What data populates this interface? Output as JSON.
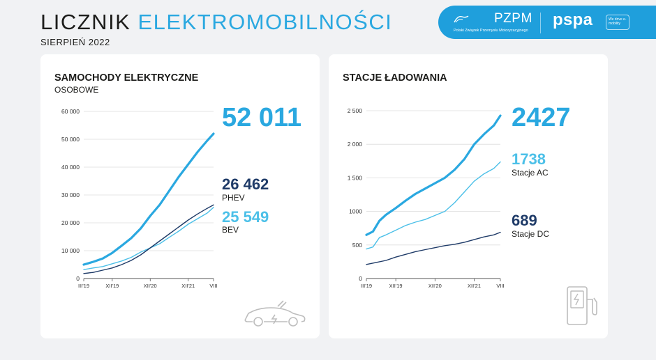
{
  "header": {
    "title_part1": "LICZNIK",
    "title_part2": "ELEKTROMOBILNOŚCI",
    "subtitle": "SIERPIEŃ 2022"
  },
  "logos": {
    "pzpm": "PZPM",
    "pzpm_sub": "Polski Związek Przemysłu Motoryzacyjnego",
    "pspa": "pspa",
    "pspa_tag": "We drive e-mobility"
  },
  "colors": {
    "accent": "#2aa8e0",
    "light": "#4cc0e8",
    "dark": "#1f3b68"
  },
  "cars": {
    "title": "SAMOCHODY ELEKTRYCZNE",
    "subtitle": "OSOBOWE",
    "total_value": "52 011",
    "phev_value": "26 462",
    "phev_label": "PHEV",
    "bev_value": "25 549",
    "bev_label": "BEV"
  },
  "stations": {
    "title": "STACJE ŁADOWANIA",
    "total_value": "2427",
    "ac_value": "1738",
    "ac_label": "Stacje AC",
    "dc_value": "689",
    "dc_label": "Stacje DC"
  },
  "chart_data": [
    {
      "type": "line",
      "ylim": [
        0,
        60000
      ],
      "yticks": [
        0,
        10000,
        20000,
        30000,
        40000,
        50000,
        60000
      ],
      "ytick_labels": [
        "0",
        "10 000",
        "20 000",
        "30 000",
        "40 000",
        "50 000",
        "60 000"
      ],
      "xlim": [
        0,
        41
      ],
      "xticks": [
        {
          "x": 0,
          "label": "III'19"
        },
        {
          "x": 9,
          "label": "XII'19"
        },
        {
          "x": 21,
          "label": "XII'20"
        },
        {
          "x": 33,
          "label": "XII'21"
        },
        {
          "x": 41,
          "label": "VIII"
        }
      ],
      "series": [
        {
          "name": "",
          "color": "#2aa8e0",
          "width": 3.2,
          "points": [
            [
              0,
              5000
            ],
            [
              3,
              6000
            ],
            [
              6,
              7200
            ],
            [
              9,
              9200
            ],
            [
              12,
              11800
            ],
            [
              15,
              14500
            ],
            [
              18,
              18000
            ],
            [
              21,
              22500
            ],
            [
              24,
              26500
            ],
            [
              27,
              31500
            ],
            [
              30,
              36500
            ],
            [
              33,
              41000
            ],
            [
              36,
              45500
            ],
            [
              39,
              49500
            ],
            [
              41,
              52011
            ]
          ]
        },
        {
          "name": "PHEV",
          "color": "#1f3b68",
          "width": 1.4,
          "points": [
            [
              0,
              1800
            ],
            [
              3,
              2200
            ],
            [
              6,
              3000
            ],
            [
              9,
              3800
            ],
            [
              12,
              5000
            ],
            [
              15,
              6500
            ],
            [
              18,
              8500
            ],
            [
              21,
              11000
            ],
            [
              24,
              13500
            ],
            [
              27,
              16000
            ],
            [
              30,
              18500
            ],
            [
              33,
              21000
            ],
            [
              36,
              23200
            ],
            [
              39,
              25200
            ],
            [
              41,
              26462
            ]
          ]
        },
        {
          "name": "BEV",
          "color": "#4cc0e8",
          "width": 1.4,
          "points": [
            [
              0,
              3200
            ],
            [
              3,
              3800
            ],
            [
              6,
              4300
            ],
            [
              9,
              5300
            ],
            [
              12,
              6300
            ],
            [
              15,
              7600
            ],
            [
              18,
              9500
            ],
            [
              21,
              11000
            ],
            [
              24,
              12500
            ],
            [
              27,
              14800
            ],
            [
              30,
              17000
            ],
            [
              33,
              19500
            ],
            [
              36,
              21500
            ],
            [
              39,
              23500
            ],
            [
              41,
              25549
            ]
          ]
        }
      ]
    },
    {
      "type": "line",
      "ylim": [
        0,
        2500
      ],
      "yticks": [
        0,
        500,
        1000,
        1500,
        2000,
        2500
      ],
      "ytick_labels": [
        "0",
        "500",
        "1000",
        "1 500",
        "2 000",
        "2 500"
      ],
      "xlim": [
        0,
        41
      ],
      "xticks": [
        {
          "x": 0,
          "label": "III'19"
        },
        {
          "x": 9,
          "label": "XII'19"
        },
        {
          "x": 21,
          "label": "XII'20"
        },
        {
          "x": 33,
          "label": "XII'21"
        },
        {
          "x": 41,
          "label": "VIII"
        }
      ],
      "series": [
        {
          "name": "",
          "color": "#2aa8e0",
          "width": 3.2,
          "points": [
            [
              0,
              650
            ],
            [
              2,
              700
            ],
            [
              4,
              860
            ],
            [
              6,
              950
            ],
            [
              9,
              1050
            ],
            [
              12,
              1160
            ],
            [
              15,
              1260
            ],
            [
              18,
              1340
            ],
            [
              21,
              1420
            ],
            [
              24,
              1500
            ],
            [
              27,
              1620
            ],
            [
              30,
              1780
            ],
            [
              33,
              2000
            ],
            [
              36,
              2150
            ],
            [
              39,
              2280
            ],
            [
              41,
              2427
            ]
          ]
        },
        {
          "name": "Stacje AC",
          "color": "#4cc0e8",
          "width": 1.4,
          "points": [
            [
              0,
              440
            ],
            [
              2,
              470
            ],
            [
              4,
              610
            ],
            [
              6,
              650
            ],
            [
              9,
              720
            ],
            [
              12,
              790
            ],
            [
              15,
              840
            ],
            [
              18,
              880
            ],
            [
              21,
              940
            ],
            [
              24,
              1000
            ],
            [
              27,
              1130
            ],
            [
              30,
              1290
            ],
            [
              33,
              1450
            ],
            [
              36,
              1560
            ],
            [
              39,
              1640
            ],
            [
              41,
              1738
            ]
          ]
        },
        {
          "name": "Stacje DC",
          "color": "#1f3b68",
          "width": 1.4,
          "points": [
            [
              0,
              210
            ],
            [
              3,
              240
            ],
            [
              6,
              270
            ],
            [
              9,
              320
            ],
            [
              12,
              360
            ],
            [
              15,
              400
            ],
            [
              18,
              430
            ],
            [
              21,
              460
            ],
            [
              24,
              490
            ],
            [
              27,
              510
            ],
            [
              30,
              540
            ],
            [
              33,
              580
            ],
            [
              36,
              620
            ],
            [
              39,
              650
            ],
            [
              41,
              689
            ]
          ]
        }
      ]
    }
  ]
}
